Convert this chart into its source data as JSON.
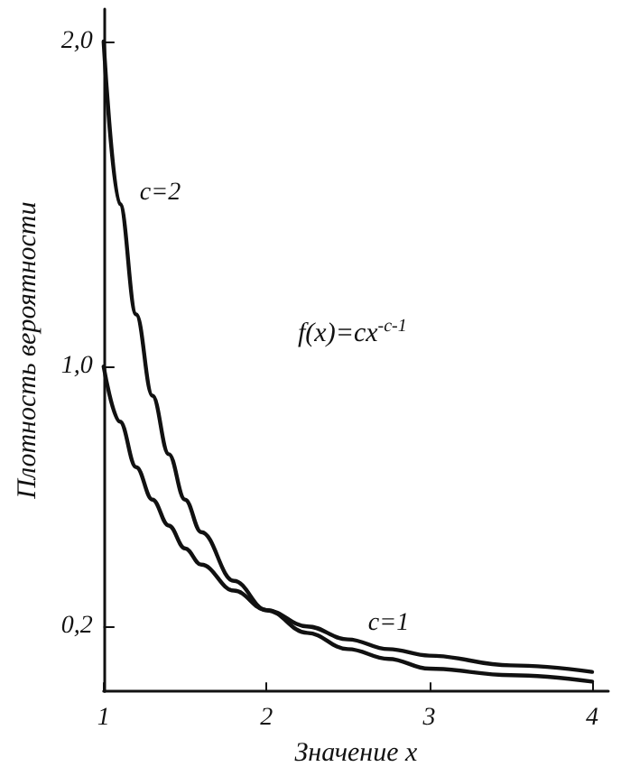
{
  "chart_data": {
    "type": "line",
    "xlabel": "Значение x",
    "ylabel": "Плотность вероятности",
    "x": [
      1,
      1.1,
      1.2,
      1.3,
      1.4,
      1.5,
      1.6,
      1.8,
      2,
      2.25,
      2.5,
      2.75,
      3,
      3.5,
      4
    ],
    "series": [
      {
        "name": "c=2",
        "color": "#111111",
        "values": [
          2,
          1.5,
          1.16,
          0.91,
          0.73,
          0.59,
          0.49,
          0.34,
          0.25,
          0.18,
          0.13,
          0.1,
          0.07,
          0.05,
          0.03
        ]
      },
      {
        "name": "c=1",
        "color": "#111111",
        "values": [
          1,
          0.83,
          0.69,
          0.59,
          0.51,
          0.44,
          0.39,
          0.31,
          0.25,
          0.2,
          0.16,
          0.13,
          0.11,
          0.08,
          0.06
        ]
      }
    ],
    "annotations": [
      "f(x)=cx$^{-c-1}$"
    ],
    "xlim": [
      1,
      4.1
    ],
    "xticks": [
      1,
      2,
      3,
      4
    ],
    "ylim": [
      0,
      2.1
    ],
    "yticks": [
      {
        "value": 0.2,
        "label": "0,2"
      },
      {
        "value": 1,
        "label": "1,0"
      },
      {
        "value": 2,
        "label": "2,0"
      }
    ],
    "grid": false,
    "legend": false,
    "marker": "none",
    "line_style": "solid"
  }
}
